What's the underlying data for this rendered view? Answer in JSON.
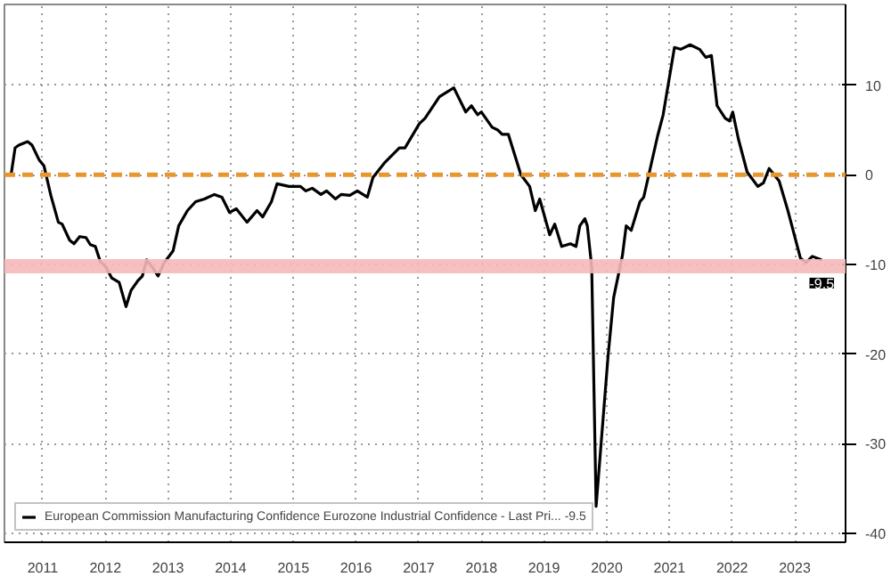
{
  "chart_data": {
    "type": "line",
    "x": [
      2011.0,
      2011.06,
      2011.12,
      2011.26,
      2011.33,
      2011.44,
      2011.52,
      2011.63,
      2011.75,
      2011.81,
      2011.93,
      2012.0,
      2012.09,
      2012.19,
      2012.26,
      2012.34,
      2012.42,
      2012.51,
      2012.6,
      2012.72,
      2012.83,
      2012.91,
      2013.02,
      2013.09,
      2013.16,
      2013.25,
      2013.34,
      2013.44,
      2013.58,
      2013.67,
      2013.81,
      2013.94,
      2014.08,
      2014.24,
      2014.36,
      2014.48,
      2014.59,
      2014.76,
      2014.92,
      2015.01,
      2015.15,
      2015.24,
      2015.43,
      2015.61,
      2015.7,
      2015.8,
      2015.94,
      2016.03,
      2016.17,
      2016.26,
      2016.4,
      2016.52,
      2016.68,
      2016.77,
      2016.95,
      2017.19,
      2017.28,
      2017.51,
      2017.6,
      2017.83,
      2018.06,
      2018.25,
      2018.34,
      2018.44,
      2018.5,
      2018.67,
      2018.76,
      2018.83,
      2018.93,
      2019.13,
      2019.27,
      2019.36,
      2019.43,
      2019.59,
      2019.67,
      2019.78,
      2019.92,
      2020.01,
      2020.07,
      2020.15,
      2020.19,
      2020.26,
      2020.33,
      2020.52,
      2020.61,
      2020.75,
      2020.81,
      2020.89,
      2021.03,
      2021.09,
      2021.31,
      2021.4,
      2021.58,
      2021.68,
      2021.83,
      2021.98,
      2022.08,
      2022.17,
      2022.26,
      2022.39,
      2022.46,
      2022.51,
      2022.6,
      2022.74,
      2022.91,
      2023.0,
      2023.09,
      2023.25,
      2023.39,
      2023.59,
      2023.68,
      2023.78,
      2023.93
    ],
    "series": [
      {
        "name": "European Commission Manufacturing Confidence Eurozone Industrial Confidence - Last Pri... -9.5",
        "color": "#000000",
        "values": [
          0.2,
          3.0,
          3.3,
          3.7,
          3.3,
          1.7,
          1.0,
          -2.3,
          -5.3,
          -5.5,
          -7.3,
          -7.7,
          -6.9,
          -7.0,
          -7.8,
          -8.0,
          -9.7,
          -10.3,
          -11.5,
          -12.0,
          -14.7,
          -12.9,
          -11.8,
          -11.3,
          -9.5,
          -10.3,
          -11.3,
          -9.8,
          -8.5,
          -5.7,
          -4.0,
          -3.0,
          -2.7,
          -2.2,
          -2.5,
          -4.2,
          -3.8,
          -5.3,
          -4.0,
          -4.7,
          -3.0,
          -1.0,
          -1.3,
          -1.3,
          -1.8,
          -1.5,
          -2.2,
          -1.8,
          -2.7,
          -2.2,
          -2.3,
          -1.8,
          -2.5,
          -0.3,
          1.3,
          3.0,
          3.0,
          5.7,
          6.3,
          8.7,
          9.7,
          7.0,
          7.7,
          6.7,
          7.0,
          5.3,
          5.0,
          4.5,
          4.5,
          0.0,
          -1.3,
          -4.0,
          -2.7,
          -6.7,
          -5.5,
          -8.0,
          -7.7,
          -8.0,
          -5.7,
          -4.9,
          -5.7,
          -10.3,
          -37.0,
          -20.3,
          -13.7,
          -9.0,
          -5.7,
          -6.2,
          -3.0,
          -2.5,
          4.3,
          6.7,
          14.2,
          14.0,
          14.5,
          14.0,
          13.1,
          13.3,
          7.7,
          6.3,
          6.0,
          7.0,
          4.0,
          0.3,
          -1.3,
          -0.9,
          0.7,
          -0.7,
          -4.0,
          -9.3,
          -9.8,
          -9.1,
          -9.5
        ]
      }
    ],
    "xlim": [
      2010.89,
      2024.31
    ],
    "xticks": [
      {
        "value": 2011.5,
        "label": "2011"
      },
      {
        "value": 2012.5,
        "label": "2012"
      },
      {
        "value": 2013.5,
        "label": "2013"
      },
      {
        "value": 2014.5,
        "label": "2014"
      },
      {
        "value": 2015.5,
        "label": "2015"
      },
      {
        "value": 2016.5,
        "label": "2016"
      },
      {
        "value": 2017.5,
        "label": "2017"
      },
      {
        "value": 2018.5,
        "label": "2018"
      },
      {
        "value": 2019.5,
        "label": "2019"
      },
      {
        "value": 2020.5,
        "label": "2020"
      },
      {
        "value": 2021.5,
        "label": "2021"
      },
      {
        "value": 2022.5,
        "label": "2022"
      },
      {
        "value": 2023.5,
        "label": "2023"
      }
    ],
    "ylim": [
      -41,
      19
    ],
    "yticks": [
      10,
      0,
      -10,
      -20,
      -30,
      -40
    ],
    "ref_lines": [
      {
        "axis": "y",
        "value": 0,
        "color": "#e8962e",
        "line_style": "dashed"
      }
    ],
    "bands": [
      {
        "axis": "y",
        "from": -11,
        "to": -9.4,
        "color": "#f6b9b9"
      }
    ],
    "annotations": [
      {
        "text": "-9.5",
        "x": 2023.93,
        "y": -9.5
      }
    ],
    "grid": true,
    "legend": "bottom left",
    "line_style": "solid"
  }
}
